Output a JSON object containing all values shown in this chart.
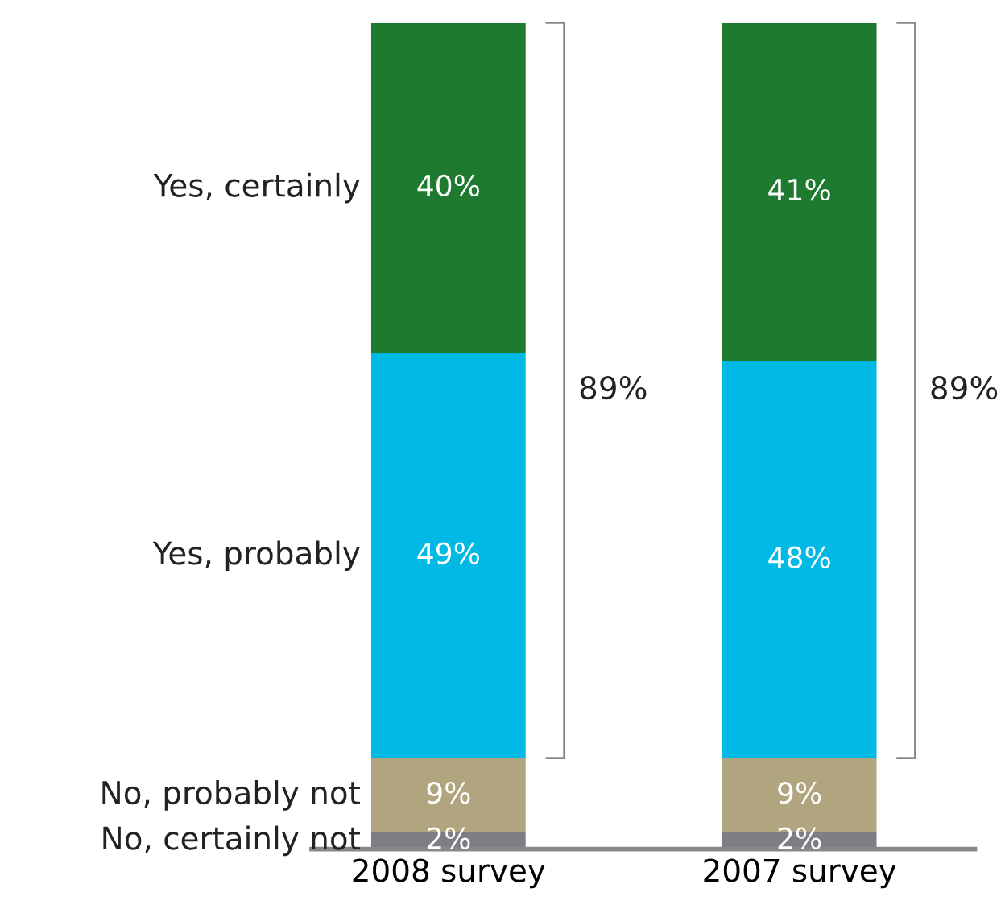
{
  "chart_data": {
    "type": "bar",
    "stacked": true,
    "categories": [
      "2008 survey",
      "2007 survey"
    ],
    "series": [
      {
        "name": "No, certainly not",
        "color": "#7d7e84",
        "values": [
          2,
          2
        ],
        "value_labels": [
          "2%",
          "2%"
        ]
      },
      {
        "name": "No, probably not",
        "color": "#b0a57e",
        "values": [
          9,
          9
        ],
        "value_labels": [
          "9%",
          "9%"
        ]
      },
      {
        "name": "Yes, probably",
        "color": "#00b9e4",
        "values": [
          49,
          48
        ],
        "value_labels": [
          "49%",
          "48%"
        ]
      },
      {
        "name": "Yes, certainly",
        "color": "#1e7a2e",
        "values": [
          40,
          41
        ],
        "value_labels": [
          "40%",
          "41%"
        ]
      }
    ],
    "annotations": [
      "89%",
      "89%"
    ]
  }
}
